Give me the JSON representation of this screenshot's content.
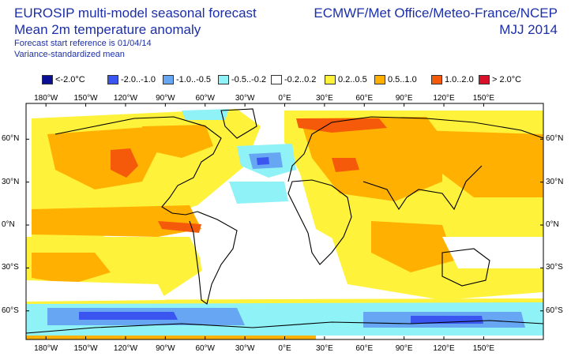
{
  "header": {
    "title_line1": "EUROSIP multi-model seasonal forecast",
    "title_line2": "Mean 2m temperature anomaly",
    "forecast_reference": "Forecast start reference is 01/04/14",
    "standardization": "Variance-standardized mean",
    "centres": "ECMWF/Met Office/Meteo-France/NCEP",
    "season": "MJJ 2014"
  },
  "legend": [
    {
      "label": "<-2.0°C",
      "color": "#0b0f96"
    },
    {
      "label": "-2.0..-1.0",
      "color": "#3a55f0"
    },
    {
      "label": "-1.0..-0.5",
      "color": "#66a6f2"
    },
    {
      "label": "-0.5..-0.2",
      "color": "#8ff2f7"
    },
    {
      "label": "-0.2..0.2",
      "color": "#ffffff"
    },
    {
      "label": "0.2..0.5",
      "color": "#fff23b"
    },
    {
      "label": "0.5..1.0",
      "color": "#ffb000"
    },
    {
      "label": "1.0..2.0",
      "color": "#f55a0a"
    },
    {
      "label": "> 2.0°C",
      "color": "#d8102a"
    }
  ],
  "axes": {
    "longitude_labels": [
      "180°W",
      "150°W",
      "120°W",
      "90°W",
      "60°W",
      "30°W",
      "0°E",
      "30°E",
      "60°E",
      "90°E",
      "120°E",
      "150°E"
    ],
    "latitude_labels": [
      "60°N",
      "30°N",
      "0°N",
      "30°S",
      "60°S"
    ]
  },
  "map_data": {
    "projection": "equirectangular",
    "lon_range": [
      -195,
      195
    ],
    "lat_range": [
      -80,
      85
    ],
    "field": "2m temperature anomaly category",
    "coastline_color": "#000000"
  }
}
